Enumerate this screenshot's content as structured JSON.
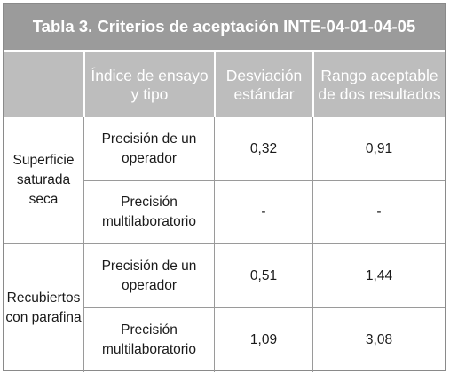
{
  "table": {
    "title": "Tabla 3. Criterios de aceptación INTE-04-01-04-05",
    "headers": {
      "col1": "",
      "col2": "Índice de ensayo y tipo",
      "col3": "Desviación estándar",
      "col4": "Rango aceptable de dos resultados"
    },
    "groups": [
      {
        "label": "Superficie saturada seca",
        "rows": [
          {
            "type": "Precisión de un operador",
            "std": "0,32",
            "range": "0,91"
          },
          {
            "type": "Precisión multilaboratorio",
            "std": "-",
            "range": "-"
          }
        ]
      },
      {
        "label": "Recubiertos con parafina",
        "rows": [
          {
            "type": "Precisión de un operador",
            "std": "0,51",
            "range": "1,44"
          },
          {
            "type": "Precisión multilaboratorio",
            "std": "1,09",
            "range": "3,08"
          }
        ]
      }
    ]
  }
}
